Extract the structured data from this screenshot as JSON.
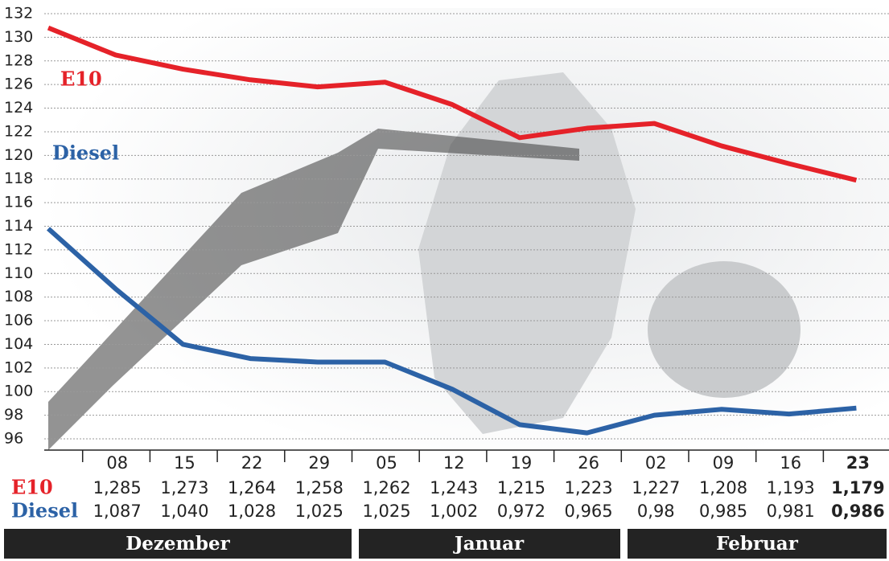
{
  "chart_data": {
    "type": "line",
    "categories": [
      null,
      "08",
      "15",
      "22",
      "29",
      "05",
      "12",
      "19",
      "26",
      "02",
      "09",
      "16",
      "23"
    ],
    "series": [
      {
        "name": "E10",
        "color": "#e52229",
        "values": [
          130.8,
          128.5,
          127.3,
          126.4,
          125.8,
          126.2,
          124.3,
          121.5,
          122.3,
          122.7,
          120.8,
          119.3,
          117.9
        ]
      },
      {
        "name": "Diesel",
        "color": "#2c62a6",
        "values": [
          113.8,
          108.7,
          104.0,
          102.8,
          102.5,
          102.5,
          100.2,
          97.2,
          96.5,
          98.0,
          98.5,
          98.1,
          98.6
        ]
      }
    ],
    "ylim": [
      96,
      132
    ],
    "yticks": [
      96,
      98,
      100,
      102,
      104,
      106,
      108,
      110,
      112,
      114,
      116,
      118,
      120,
      122,
      124,
      126,
      128,
      130,
      132
    ],
    "grid": true
  },
  "table": {
    "rows": [
      [
        "1,285",
        "1,273",
        "1,264",
        "1,258",
        "1,262",
        "1,243",
        "1,215",
        "1,223",
        "1,227",
        "1,208",
        "1,193",
        "1,179"
      ],
      [
        "1,087",
        "1,040",
        "1,028",
        "1,025",
        "1,025",
        "1,002",
        "0,972",
        "0,965",
        "0,98",
        "0,985",
        "0,981",
        "0,986"
      ]
    ]
  },
  "months": [
    "Dezember",
    "Januar",
    "Februar"
  ]
}
